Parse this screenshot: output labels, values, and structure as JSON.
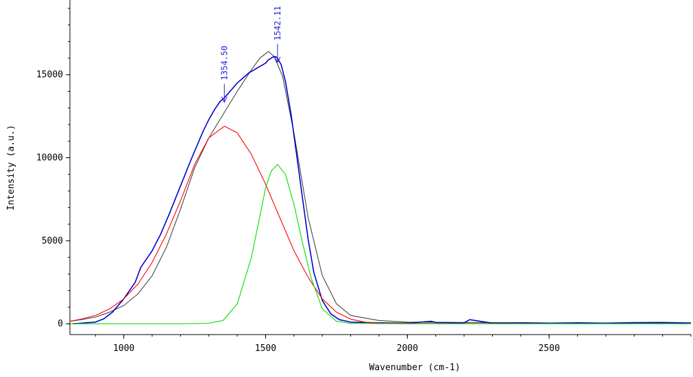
{
  "chart_data": {
    "type": "line",
    "title": "",
    "xlabel": "Wavenumber (cm-1)",
    "ylabel": "Intensity (a.u.)",
    "xlim": [
      810,
      3000
    ],
    "ylim": [
      -650,
      19500
    ],
    "xticks": [
      1000,
      1500,
      2000,
      2500
    ],
    "yticks": [
      0,
      5000,
      10000,
      15000
    ],
    "grid": false,
    "legend": "none",
    "annotations": [
      {
        "text": "1354.50",
        "x": 1354.5,
        "y": 13300
      },
      {
        "text": "1542.11",
        "x": 1542.11,
        "y": 15700
      }
    ],
    "series": [
      {
        "role": "measured spectrum",
        "color": "#0000cc",
        "x": [
          820,
          860,
          900,
          930,
          960,
          1000,
          1040,
          1060,
          1080,
          1100,
          1130,
          1160,
          1200,
          1240,
          1280,
          1300,
          1320,
          1340,
          1354,
          1380,
          1400,
          1420,
          1440,
          1460,
          1480,
          1500,
          1510,
          1520,
          1530,
          1540,
          1555,
          1570,
          1590,
          1610,
          1630,
          1650,
          1670,
          1700,
          1730,
          1760,
          1800,
          1900,
          2000,
          2085,
          2100,
          2200,
          2220,
          2300,
          2400,
          2500,
          2600,
          2700,
          2800,
          2900,
          3000
        ],
        "y": [
          0,
          50,
          100,
          300,
          700,
          1500,
          2500,
          3400,
          3900,
          4400,
          5400,
          6600,
          8300,
          10000,
          11600,
          12300,
          12900,
          13400,
          13600,
          14100,
          14500,
          14800,
          15100,
          15300,
          15500,
          15700,
          15900,
          16000,
          16100,
          16050,
          15600,
          14600,
          12600,
          10100,
          7600,
          5100,
          3100,
          1400,
          600,
          250,
          100,
          60,
          40,
          150,
          80,
          50,
          250,
          40,
          60,
          40,
          60,
          40,
          70,
          80,
          50
        ]
      },
      {
        "role": "fitted envelope",
        "color": "#444444",
        "x": [
          810,
          850,
          900,
          950,
          1000,
          1050,
          1100,
          1150,
          1200,
          1250,
          1300,
          1350,
          1400,
          1450,
          1480,
          1510,
          1530,
          1560,
          1600,
          1650,
          1700,
          1750,
          1800,
          1900,
          2000,
          2500,
          3000
        ],
        "y": [
          150,
          250,
          400,
          700,
          1100,
          1800,
          2900,
          4600,
          6900,
          9400,
          11200,
          12600,
          14000,
          15300,
          16000,
          16400,
          16100,
          14900,
          11500,
          6400,
          2900,
          1200,
          500,
          200,
          100,
          50,
          50
        ]
      },
      {
        "role": "fitted band D",
        "color": "#ff0000",
        "x": [
          810,
          850,
          900,
          950,
          1000,
          1050,
          1100,
          1150,
          1200,
          1250,
          1300,
          1354.5,
          1400,
          1450,
          1500,
          1550,
          1600,
          1650,
          1700,
          1750,
          1800,
          1850,
          1900,
          2000,
          2500,
          3000
        ],
        "y": [
          150,
          280,
          500,
          900,
          1500,
          2400,
          3700,
          5400,
          7400,
          9600,
          11200,
          11900,
          11500,
          10200,
          8400,
          6400,
          4400,
          2800,
          1500,
          700,
          280,
          100,
          40,
          20,
          10,
          10
        ]
      },
      {
        "role": "fitted band G",
        "color": "#00dd00",
        "x": [
          810,
          1200,
          1300,
          1350,
          1400,
          1450,
          1480,
          1500,
          1520,
          1542.11,
          1570,
          1600,
          1630,
          1660,
          1700,
          1750,
          1800,
          2000,
          2500,
          3000
        ],
        "y": [
          0,
          0,
          30,
          200,
          1200,
          4000,
          6500,
          8200,
          9200,
          9600,
          9000,
          7200,
          4900,
          2800,
          900,
          150,
          20,
          0,
          0,
          0
        ]
      }
    ]
  }
}
